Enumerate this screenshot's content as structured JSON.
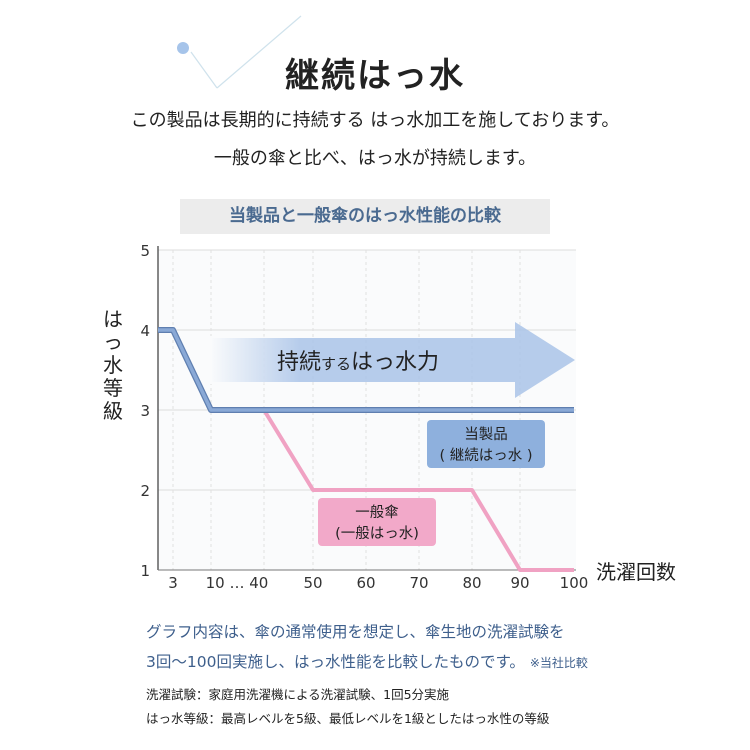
{
  "page": {
    "heading": "継続はっ水",
    "intro_lines": [
      "この製品は長期的に持続する はっ水加工を施しております。",
      "一般の傘と比べ、はっ水が持続します。"
    ]
  },
  "chart_data": {
    "type": "line",
    "title": "当製品と一般傘のはっ水性能の比較",
    "ylabel": "はっ水等級",
    "xlabel": "洗濯回数",
    "ylim": [
      1,
      5
    ],
    "yticks": [
      1,
      2,
      3,
      4,
      5
    ],
    "x_ticks": [
      "3",
      "10 … 40",
      "50",
      "60",
      "70",
      "80",
      "90",
      "100"
    ],
    "grid": true,
    "arrow_label": {
      "main": "持続",
      "small": "する",
      "rest": "はっ水力"
    },
    "series": [
      {
        "name": "当製品（継続はっ水）",
        "label_lines": [
          "当製品",
          "( 継続はっ水 )"
        ],
        "color": "#8aa9d6",
        "points": [
          [
            "0",
            4
          ],
          [
            "3",
            4
          ],
          [
            "10",
            3
          ],
          [
            "40",
            3
          ],
          [
            "50",
            3
          ],
          [
            "60",
            3
          ],
          [
            "70",
            3
          ],
          [
            "80",
            3
          ],
          [
            "90",
            3
          ],
          [
            "100",
            3
          ]
        ]
      },
      {
        "name": "一般傘（一般はっ水）",
        "label_lines": [
          "一般傘",
          "(一般はっ水)"
        ],
        "color": "#f0a2c3",
        "points": [
          [
            "0",
            4
          ],
          [
            "3",
            4
          ],
          [
            "10",
            3
          ],
          [
            "40",
            3
          ],
          [
            "50",
            2
          ],
          [
            "60",
            2
          ],
          [
            "70",
            2
          ],
          [
            "80",
            2
          ],
          [
            "90",
            1
          ],
          [
            "100",
            1
          ]
        ]
      }
    ]
  },
  "notes": {
    "line1": "グラフ内容は、傘の通常使用を想定し、傘生地の洗濯試験を",
    "line2": "3回〜100回実施し、はっ水性能を比較したものです。",
    "line2_small": "※当社比較",
    "line3": "洗濯試験：家庭用洗濯機による洗濯試験、1回5分実施",
    "line4": "はっ水等級：最高レベルを5級、最低レベルを1級としたはっ水性の等級"
  }
}
